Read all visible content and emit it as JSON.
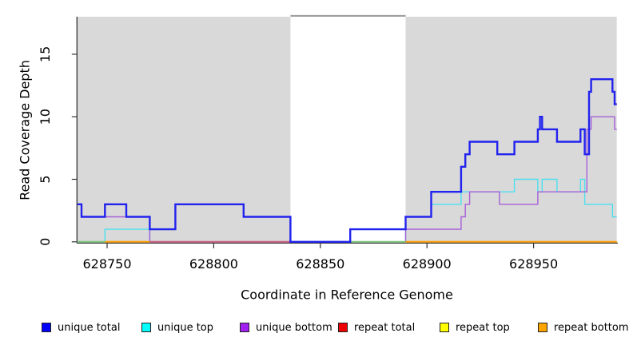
{
  "figure": {
    "xlabel": "Coordinate in Reference Genome",
    "ylabel": "Read Coverage Depth"
  },
  "legend": {
    "items": [
      {
        "label": "unique total",
        "color": "#0000ff"
      },
      {
        "label": "unique top",
        "color": "#00ffff"
      },
      {
        "label": "unique bottom",
        "color": "#a020f0"
      },
      {
        "label": "repeat total",
        "color": "#ee0000"
      },
      {
        "label": "repeat top",
        "color": "#ffff00"
      },
      {
        "label": "repeat bottom",
        "color": "#ffa500"
      }
    ]
  },
  "chart_data": {
    "type": "line",
    "subtype": "step-after-coverage",
    "title": "",
    "xlabel": "Coordinate in Reference Genome",
    "ylabel": "Read Coverage Depth",
    "x_ticks": [
      628750,
      628800,
      628850,
      628900,
      628950
    ],
    "y_ticks": [
      0,
      5,
      10,
      15
    ],
    "x_range": [
      628736,
      628989
    ],
    "y_max": 18,
    "grid": false,
    "legend_position": "bottom",
    "shade_color": "#d9d9d9",
    "shaded_regions": [
      {
        "from": 628736,
        "to": 628836
      },
      {
        "from": 628890,
        "to": 628989
      }
    ],
    "gap": {
      "from": 628836,
      "to": 628890
    },
    "series": [
      {
        "name": "unique total",
        "color": "#2222ee",
        "width": 2.4,
        "points": [
          [
            628736,
            3
          ],
          [
            628738,
            2
          ],
          [
            628749,
            3
          ],
          [
            628759,
            2
          ],
          [
            628770,
            1
          ],
          [
            628782,
            3
          ],
          [
            628814,
            2
          ],
          [
            628836,
            0
          ],
          [
            628864,
            1
          ],
          [
            628890,
            2
          ],
          [
            628902,
            4
          ],
          [
            628916,
            6
          ],
          [
            628918,
            7
          ],
          [
            628920,
            8
          ],
          [
            628933,
            7
          ],
          [
            628941,
            8
          ],
          [
            628952,
            9
          ],
          [
            628953,
            10
          ],
          [
            628954,
            9
          ],
          [
            628961,
            8
          ],
          [
            628972,
            9
          ],
          [
            628974,
            7
          ],
          [
            628976,
            12
          ],
          [
            628977,
            13
          ],
          [
            628987,
            12
          ],
          [
            628988,
            11
          ]
        ]
      },
      {
        "name": "unique top",
        "color": "#4de0ee",
        "width": 1.4,
        "points": [
          [
            628736,
            0
          ],
          [
            628749,
            1
          ],
          [
            628770,
            0
          ],
          [
            628890,
            2
          ],
          [
            628902,
            3
          ],
          [
            628916,
            4
          ],
          [
            628941,
            5
          ],
          [
            628952,
            4
          ],
          [
            628954,
            5
          ],
          [
            628961,
            4
          ],
          [
            628972,
            5
          ],
          [
            628974,
            3
          ],
          [
            628987,
            2
          ]
        ]
      },
      {
        "name": "unique bottom",
        "color": "#a55fd8",
        "width": 1.4,
        "points": [
          [
            628736,
            3
          ],
          [
            628738,
            2
          ],
          [
            628770,
            0
          ],
          [
            628890,
            1
          ],
          [
            628916,
            2
          ],
          [
            628918,
            3
          ],
          [
            628920,
            4
          ],
          [
            628934,
            3
          ],
          [
            628952,
            4
          ],
          [
            628975,
            9
          ],
          [
            628977,
            10
          ],
          [
            628988,
            9
          ]
        ]
      },
      {
        "name": "repeat total",
        "color": "#ee0000",
        "width": 1.3,
        "points": [
          [
            628736,
            0
          ]
        ]
      },
      {
        "name": "repeat top",
        "color": "#ffff00",
        "width": 1.3,
        "points": [
          [
            628736,
            0
          ]
        ]
      },
      {
        "name": "repeat bottom",
        "color": "#ff9d00",
        "width": 1.3,
        "points": [
          [
            628736,
            0
          ]
        ]
      }
    ],
    "baseline_segments": [
      {
        "from": 628736,
        "to": 628749,
        "color": "#7cc87c"
      },
      {
        "from": 628749,
        "to": 628770,
        "color": "#ff9d00"
      },
      {
        "from": 628770,
        "to": 628836,
        "color": "#cc5f85"
      },
      {
        "from": 628864,
        "to": 628890,
        "color": "#7cc87c"
      },
      {
        "from": 628890,
        "to": 628989,
        "color": "#ff9d00"
      }
    ]
  }
}
